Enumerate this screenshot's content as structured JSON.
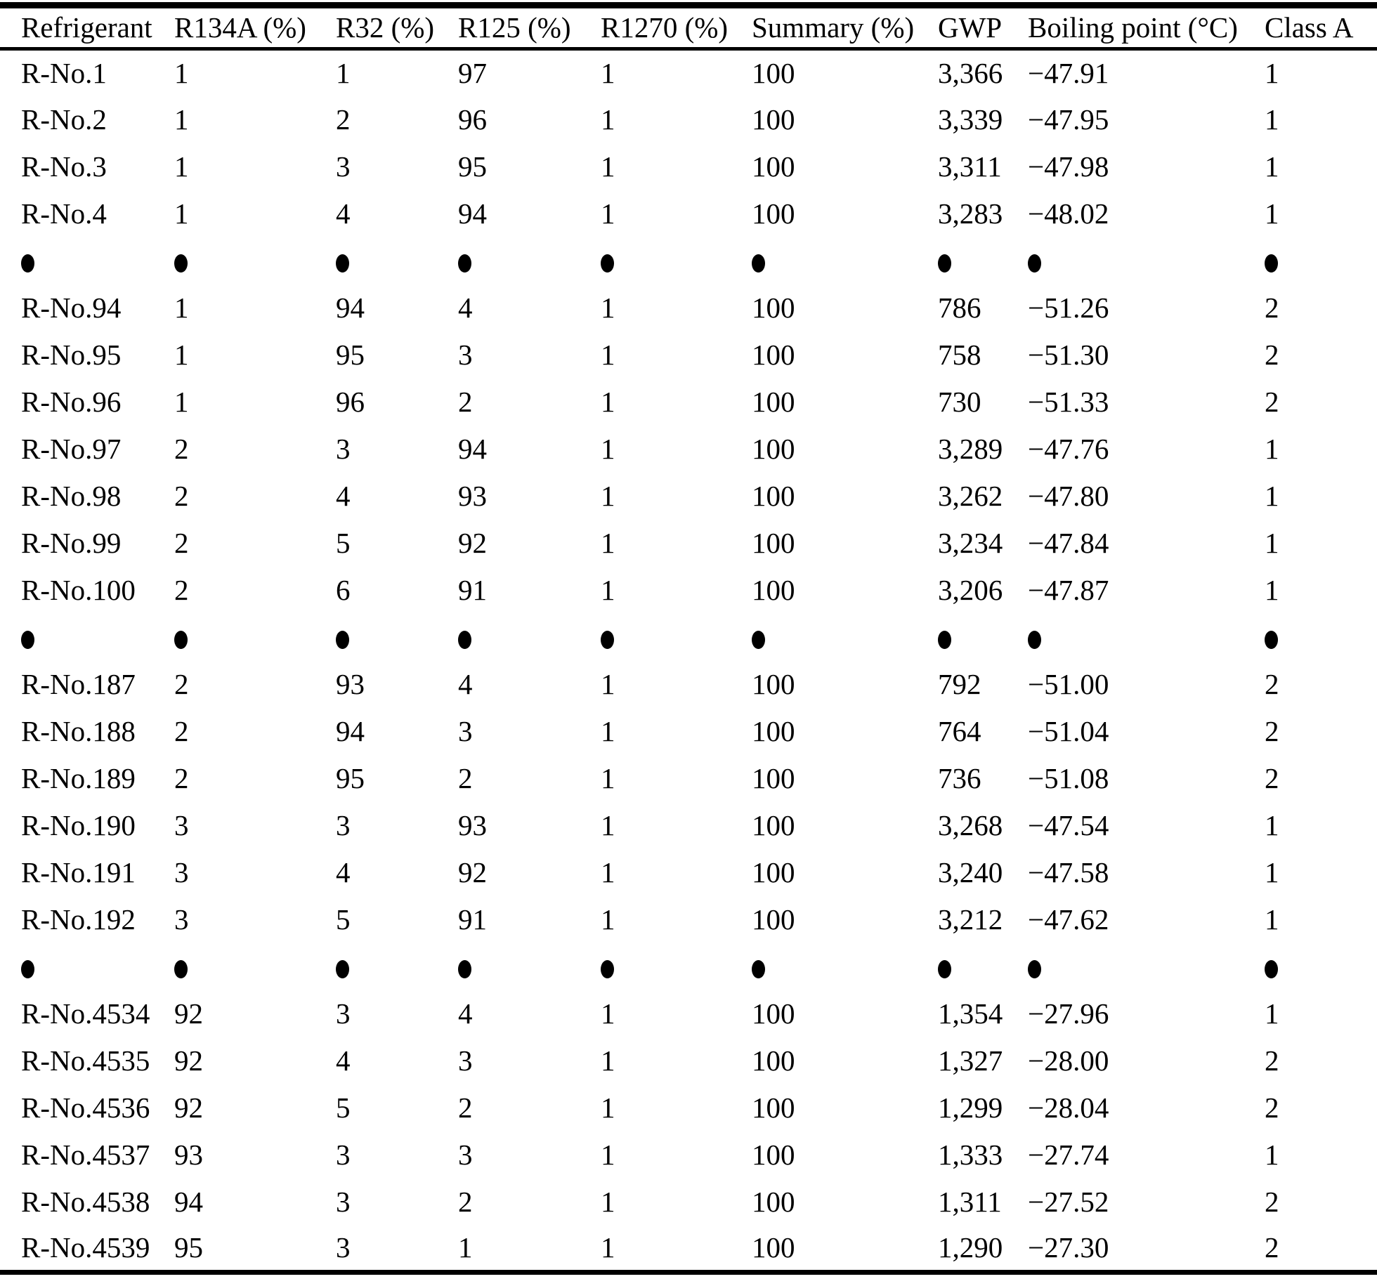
{
  "colors": {
    "text": "#000000",
    "background": "#ffffff",
    "rule": "#000000"
  },
  "ellipsis_marker": "•",
  "table": {
    "columns": [
      "Refrigerant",
      "R134A (%)",
      "R32 (%)",
      "R125 (%)",
      "R1270 (%)",
      "Summary (%)",
      "GWP",
      "Boiling point (°C)",
      "Class A"
    ],
    "rows": [
      {
        "cells": [
          "R-No.1",
          "1",
          "1",
          "97",
          "1",
          "100",
          "3,366",
          "−47.91",
          "1"
        ]
      },
      {
        "cells": [
          "R-No.2",
          "1",
          "2",
          "96",
          "1",
          "100",
          "3,339",
          "−47.95",
          "1"
        ]
      },
      {
        "cells": [
          "R-No.3",
          "1",
          "3",
          "95",
          "1",
          "100",
          "3,311",
          "−47.98",
          "1"
        ]
      },
      {
        "cells": [
          "R-No.4",
          "1",
          "4",
          "94",
          "1",
          "100",
          "3,283",
          "−48.02",
          "1"
        ]
      },
      {
        "dots": true
      },
      {
        "cells": [
          "R-No.94",
          "1",
          "94",
          "4",
          "1",
          "100",
          "786",
          "−51.26",
          "2"
        ]
      },
      {
        "cells": [
          "R-No.95",
          "1",
          "95",
          "3",
          "1",
          "100",
          "758",
          "−51.30",
          "2"
        ]
      },
      {
        "cells": [
          "R-No.96",
          "1",
          "96",
          "2",
          "1",
          "100",
          "730",
          "−51.33",
          "2"
        ]
      },
      {
        "cells": [
          "R-No.97",
          "2",
          "3",
          "94",
          "1",
          "100",
          "3,289",
          "−47.76",
          "1"
        ]
      },
      {
        "cells": [
          "R-No.98",
          "2",
          "4",
          "93",
          "1",
          "100",
          "3,262",
          "−47.80",
          "1"
        ]
      },
      {
        "cells": [
          "R-No.99",
          "2",
          "5",
          "92",
          "1",
          "100",
          "3,234",
          "−47.84",
          "1"
        ]
      },
      {
        "cells": [
          "R-No.100",
          "2",
          "6",
          "91",
          "1",
          "100",
          "3,206",
          "−47.87",
          "1"
        ]
      },
      {
        "dots": true
      },
      {
        "cells": [
          "R-No.187",
          "2",
          "93",
          "4",
          "1",
          "100",
          "792",
          "−51.00",
          "2"
        ]
      },
      {
        "cells": [
          "R-No.188",
          "2",
          "94",
          "3",
          "1",
          "100",
          "764",
          "−51.04",
          "2"
        ]
      },
      {
        "cells": [
          "R-No.189",
          "2",
          "95",
          "2",
          "1",
          "100",
          "736",
          "−51.08",
          "2"
        ]
      },
      {
        "cells": [
          "R-No.190",
          "3",
          "3",
          "93",
          "1",
          "100",
          "3,268",
          "−47.54",
          "1"
        ]
      },
      {
        "cells": [
          "R-No.191",
          "3",
          "4",
          "92",
          "1",
          "100",
          "3,240",
          "−47.58",
          "1"
        ]
      },
      {
        "cells": [
          "R-No.192",
          "3",
          "5",
          "91",
          "1",
          "100",
          "3,212",
          "−47.62",
          "1"
        ]
      },
      {
        "dots": true
      },
      {
        "cells": [
          "R-No.4534",
          "92",
          "3",
          "4",
          "1",
          "100",
          "1,354",
          "−27.96",
          "1"
        ]
      },
      {
        "cells": [
          "R-No.4535",
          "92",
          "4",
          "3",
          "1",
          "100",
          "1,327",
          "−28.00",
          "2"
        ]
      },
      {
        "cells": [
          "R-No.4536",
          "92",
          "5",
          "2",
          "1",
          "100",
          "1,299",
          "−28.04",
          "2"
        ]
      },
      {
        "cells": [
          "R-No.4537",
          "93",
          "3",
          "3",
          "1",
          "100",
          "1,333",
          "−27.74",
          "1"
        ]
      },
      {
        "cells": [
          "R-No.4538",
          "94",
          "3",
          "2",
          "1",
          "100",
          "1,311",
          "−27.52",
          "2"
        ]
      },
      {
        "cells": [
          "R-No.4539",
          "95",
          "3",
          "1",
          "1",
          "100",
          "1,290",
          "−27.30",
          "2"
        ]
      }
    ]
  }
}
